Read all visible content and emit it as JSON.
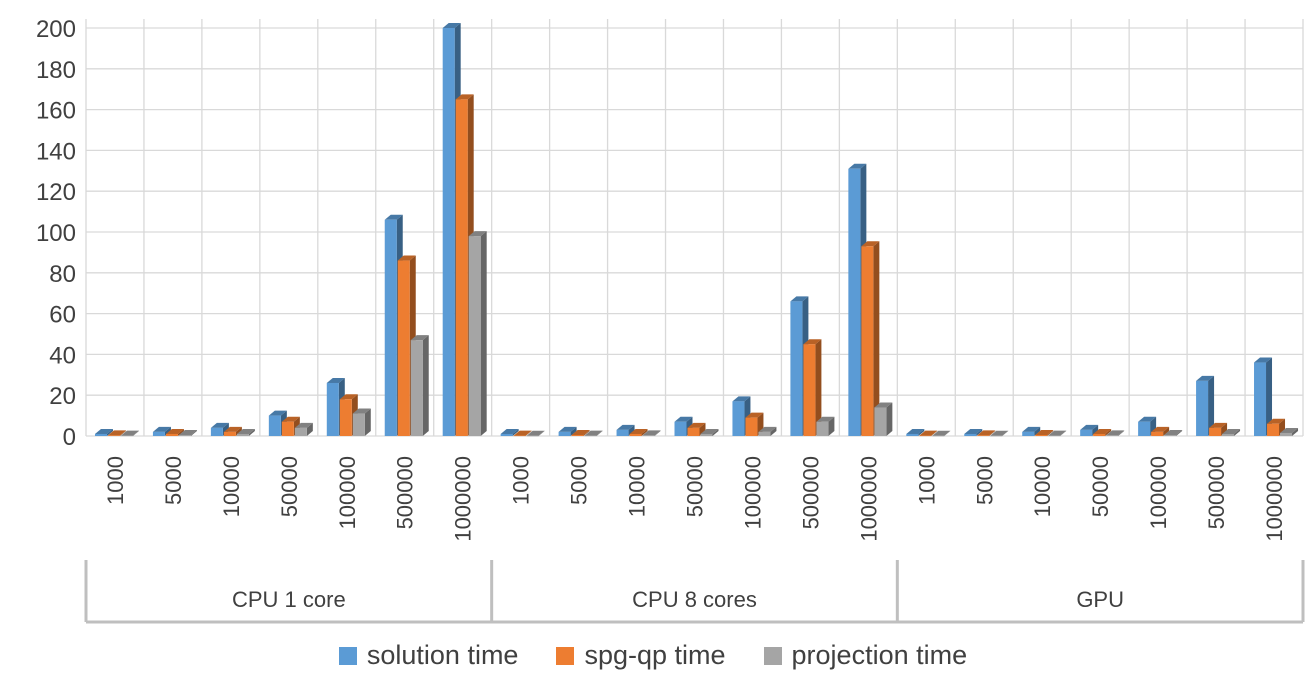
{
  "chart_data": {
    "type": "bar",
    "title": "",
    "xlabel": "",
    "ylabel": "",
    "ylim": [
      0,
      200
    ],
    "yticks": [
      0,
      20,
      40,
      60,
      80,
      100,
      120,
      140,
      160,
      180,
      200
    ],
    "grid": true,
    "legend_position": "bottom",
    "groups": [
      {
        "label": "CPU 1 core",
        "categories": [
          "1000",
          "5000",
          "10000",
          "50000",
          "100000",
          "500000",
          "1000000"
        ]
      },
      {
        "label": "CPU 8 cores",
        "categories": [
          "1000",
          "5000",
          "10000",
          "50000",
          "100000",
          "500000",
          "1000000"
        ]
      },
      {
        "label": "GPU",
        "categories": [
          "1000",
          "5000",
          "10000",
          "50000",
          "100000",
          "500000",
          "1000000"
        ]
      }
    ],
    "series": [
      {
        "name": "solution time",
        "color": "#5B9BD5",
        "values": [
          [
            1,
            2,
            4,
            10,
            26,
            106,
            200
          ],
          [
            1,
            2,
            3,
            7,
            17,
            66,
            131
          ],
          [
            1,
            1,
            2,
            3,
            7,
            27,
            36
          ]
        ]
      },
      {
        "name": "spg-qp time",
        "color": "#ED7D31",
        "values": [
          [
            0.3,
            1,
            2,
            7,
            18,
            86,
            165
          ],
          [
            0.2,
            0.5,
            1,
            4,
            9,
            45,
            93
          ],
          [
            0.2,
            0.3,
            0.5,
            1,
            2,
            4,
            6
          ]
        ]
      },
      {
        "name": "projection time",
        "color": "#A5A5A5",
        "values": [
          [
            0.2,
            0.5,
            1,
            4,
            11,
            47,
            98
          ],
          [
            0.1,
            0.2,
            0.3,
            1,
            2,
            7,
            14
          ],
          [
            0.1,
            0.1,
            0.2,
            0.3,
            0.5,
            1,
            1.5
          ]
        ]
      }
    ]
  }
}
